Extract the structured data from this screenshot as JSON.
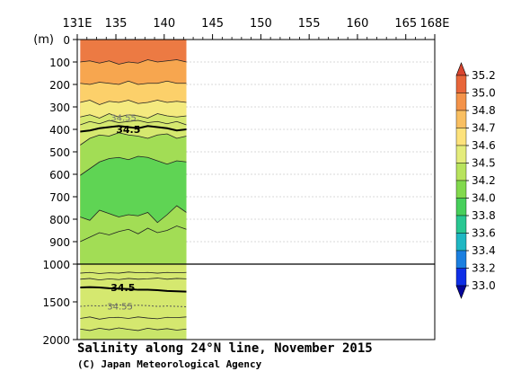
{
  "chart_data": {
    "type": "heatmap",
    "title": "Salinity along 24°N line, November 2015",
    "credit": "(C) Japan Meteorological Agency",
    "x_tick_labels": [
      "131E",
      "135",
      "140",
      "145",
      "150",
      "155",
      "160",
      "165",
      "168E"
    ],
    "x_tick_values": [
      131,
      135,
      140,
      145,
      150,
      155,
      160,
      165,
      168
    ],
    "xlim": [
      131,
      168
    ],
    "data_lon_range": [
      131.3,
      142.3
    ],
    "y_unit_label": "(m)",
    "upper_panel": {
      "ylim": [
        0,
        1000
      ],
      "ticks": [
        0,
        100,
        200,
        300,
        400,
        500,
        600,
        700,
        800,
        900,
        1000
      ],
      "tick_labels": [
        "0",
        "100",
        "200",
        "300",
        "400",
        "500",
        "600",
        "700",
        "800",
        "900",
        "1000"
      ]
    },
    "lower_panel": {
      "ylim": [
        1000,
        2000
      ],
      "ticks": [
        1500,
        2000
      ],
      "tick_labels": [
        "1500",
        "2000"
      ]
    },
    "colorbar": {
      "levels": [
        35.2,
        35.0,
        34.8,
        34.7,
        34.6,
        34.5,
        34.2,
        34.0,
        33.8,
        33.6,
        33.4,
        33.2,
        33.0
      ],
      "labels": [
        "35.2",
        "35.0",
        "34.8",
        "34.7",
        "34.6",
        "34.5",
        "34.2",
        "34.0",
        "33.8",
        "33.6",
        "33.4",
        "33.2",
        "33.0"
      ],
      "colors": [
        "#e8663a",
        "#f4934a",
        "#f9bf61",
        "#fde27b",
        "#e4ec7b",
        "#b8e35d",
        "#82d94d",
        "#47cf5b",
        "#29c792",
        "#1fb7c3",
        "#1b7fe0",
        "#0f2fe6",
        "#0a0ac8"
      ],
      "top_arrow_color": "#d9452f",
      "bottom_arrow_color": "#05059a"
    },
    "contour_labels": [
      {
        "text": "34.5",
        "panel": "upper"
      },
      {
        "text": "34.55",
        "panel": "upper"
      },
      {
        "text": "34.5",
        "panel": "lower"
      },
      {
        "text": "34.55",
        "panel": "lower"
      }
    ],
    "upper_bands": [
      {
        "value": 35.1,
        "color": "#ec7a43",
        "top": [
          0,
          0,
          0,
          0,
          0,
          0,
          0,
          0,
          0,
          0,
          0,
          0
        ]
      },
      {
        "value": 34.9,
        "color": "#f7a64f",
        "top": [
          100,
          95,
          105,
          95,
          110,
          100,
          105,
          90,
          100,
          95,
          90,
          100
        ]
      },
      {
        "value": 34.75,
        "color": "#fcd06a",
        "top": [
          195,
          200,
          190,
          195,
          200,
          185,
          200,
          195,
          195,
          185,
          195,
          195
        ]
      },
      {
        "value": 34.65,
        "color": "#f4ea7f",
        "top": [
          280,
          270,
          290,
          275,
          280,
          270,
          285,
          280,
          270,
          280,
          275,
          280
        ]
      },
      {
        "value": 34.55,
        "color": "#d5e86f",
        "top": [
          345,
          335,
          350,
          330,
          345,
          335,
          340,
          350,
          330,
          340,
          345,
          340
        ]
      },
      {
        "value": 34.35,
        "color": "#a2dd55",
        "top": [
          470,
          440,
          425,
          430,
          415,
          425,
          430,
          440,
          425,
          420,
          440,
          430
        ]
      },
      {
        "value": 34.1,
        "color": "#5fd454",
        "top": [
          605,
          575,
          545,
          530,
          525,
          535,
          520,
          525,
          540,
          555,
          540,
          545
        ]
      },
      {
        "value": 34.35,
        "color": "#a2dd55",
        "top": [
          790,
          805,
          760,
          775,
          790,
          780,
          785,
          770,
          815,
          780,
          740,
          770
        ]
      },
      {
        "value": 34.55,
        "color": "#d5e86f",
        "top": [
          1000,
          1000,
          1000,
          1000,
          1000,
          1000,
          1000,
          1000,
          1000,
          1000,
          1000,
          1000
        ]
      }
    ],
    "lower_bands": [
      {
        "value": 34.55,
        "color": "#d5e86f",
        "top": [
          1000,
          1000,
          1000,
          1000,
          1000,
          1000,
          1000,
          1000,
          1000,
          1000,
          1000,
          1000
        ]
      },
      {
        "value": 34.6,
        "color": "#c9e56a",
        "top": [
          1860,
          1880,
          1850,
          1870,
          1845,
          1865,
          1880,
          1850,
          1870,
          1855,
          1875,
          1860
        ]
      }
    ],
    "upper_contours": [
      [
        100,
        95,
        105,
        95,
        110,
        100,
        105,
        90,
        100,
        95,
        90,
        100
      ],
      [
        195,
        200,
        190,
        195,
        200,
        185,
        200,
        195,
        195,
        185,
        195,
        195
      ],
      [
        280,
        270,
        290,
        275,
        280,
        270,
        285,
        280,
        270,
        280,
        275,
        280
      ],
      [
        345,
        335,
        350,
        330,
        345,
        335,
        340,
        350,
        330,
        340,
        345,
        340
      ],
      [
        380,
        365,
        375,
        360,
        370,
        365,
        360,
        370,
        365,
        375,
        365,
        380
      ],
      [
        470,
        440,
        425,
        430,
        415,
        425,
        430,
        440,
        425,
        420,
        440,
        430
      ],
      [
        605,
        575,
        545,
        530,
        525,
        535,
        520,
        525,
        540,
        555,
        540,
        545
      ],
      [
        790,
        805,
        760,
        775,
        790,
        780,
        785,
        770,
        815,
        780,
        740,
        770
      ],
      [
        900,
        880,
        860,
        870,
        855,
        845,
        865,
        840,
        860,
        850,
        830,
        845
      ]
    ],
    "upper_bold_contour": [
      410,
      405,
      395,
      390,
      385,
      390,
      395,
      385,
      390,
      395,
      405,
      400
    ],
    "lower_contours": [
      [
        1120,
        1110,
        1125,
        1115,
        1120,
        1105,
        1115,
        1110,
        1120,
        1110,
        1115,
        1110
      ],
      [
        1200,
        1190,
        1210,
        1195,
        1205,
        1190,
        1200,
        1195,
        1185,
        1200,
        1190,
        1195
      ],
      [
        1720,
        1700,
        1730,
        1710,
        1705,
        1720,
        1700,
        1715,
        1725,
        1705,
        1710,
        1700
      ],
      [
        1860,
        1880,
        1850,
        1870,
        1845,
        1865,
        1880,
        1850,
        1870,
        1855,
        1875,
        1860
      ]
    ],
    "lower_bold_contour": [
      1310,
      1305,
      1310,
      1320,
      1325,
      1330,
      1340,
      1340,
      1345,
      1355,
      1360,
      1365
    ],
    "lower_dotted_contour": [
      1560,
      1550,
      1555,
      1545,
      1540,
      1550,
      1545,
      1550,
      1560,
      1555,
      1560,
      1565
    ]
  }
}
